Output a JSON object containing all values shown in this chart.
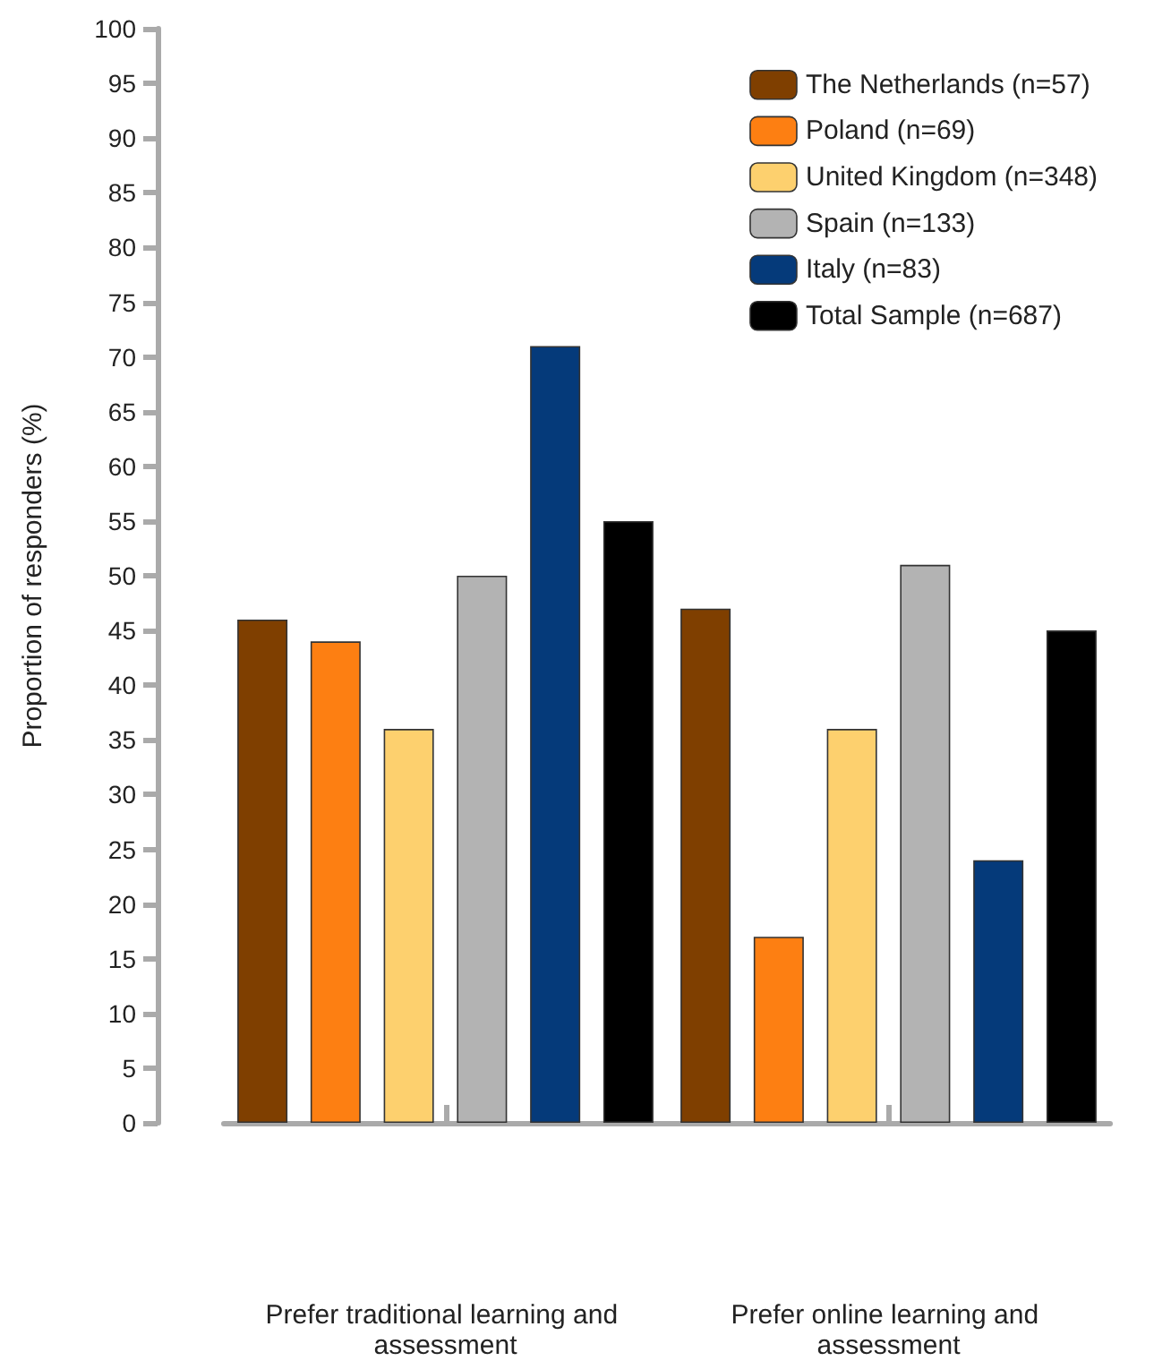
{
  "chart_data": {
    "type": "bar",
    "ylabel": "Proportion of responders (%)",
    "categories": [
      "Prefer traditional learning and assessment",
      "Prefer online learning and assessment"
    ],
    "series": [
      {
        "name": "The Netherlands (n=57)",
        "color": "#7f3f00",
        "values": [
          46,
          47
        ]
      },
      {
        "name": "Poland (n=69)",
        "color": "#fd7f12",
        "values": [
          44,
          17
        ]
      },
      {
        "name": "United Kingdom (n=348)",
        "color": "#fdd06e",
        "values": [
          36,
          36
        ]
      },
      {
        "name": "Spain (n=133)",
        "color": "#b3b3b3",
        "values": [
          50,
          51
        ]
      },
      {
        "name": "Italy (n=83)",
        "color": "#053a7a",
        "values": [
          71,
          24
        ]
      },
      {
        "name": "Total Sample (n=687)",
        "color": "#000000",
        "values": [
          55,
          45
        ]
      }
    ],
    "ylim": [
      0,
      100
    ],
    "yticks": [
      0,
      5,
      10,
      15,
      20,
      25,
      30,
      35,
      40,
      45,
      50,
      55,
      60,
      65,
      70,
      75,
      80,
      85,
      90,
      95,
      100
    ],
    "grid": false,
    "legend": "top right"
  }
}
